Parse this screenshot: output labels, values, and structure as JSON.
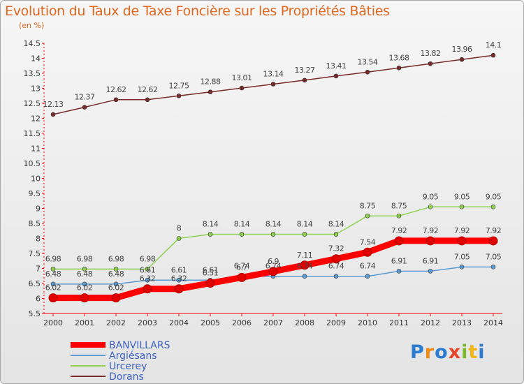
{
  "title": "Evolution du Taux de Taxe Foncière sur les Propriétés Bâties",
  "unit": "(en %)",
  "logo": "Proxiti",
  "chart_data": {
    "type": "line",
    "x": [
      "2000",
      "2001",
      "2002",
      "2003",
      "2004",
      "2005",
      "2006",
      "2007",
      "2008",
      "2009",
      "2010",
      "2011",
      "2012",
      "2013",
      "2014"
    ],
    "ylim": [
      5.5,
      14.5
    ],
    "yticks": [
      "5.5",
      "6",
      "6.5",
      "7",
      "7.5",
      "8",
      "8.5",
      "9",
      "9.5",
      "10",
      "10.5",
      "11",
      "11.5",
      "12",
      "12.5",
      "13",
      "13.5",
      "14",
      "14.5"
    ],
    "grid": false,
    "legend": "bottom-left",
    "series": [
      {
        "name": "BANVILLARS",
        "color": "#ff0000",
        "values": [
          6.02,
          6.02,
          6.02,
          6.32,
          6.32,
          6.51,
          6.7,
          6.9,
          7.11,
          7.32,
          7.54,
          7.92,
          7.92,
          7.92,
          7.92
        ],
        "labels": [
          "6.02",
          "6.02",
          "6.02",
          "6.32",
          "6.32",
          "6.51",
          "6.7",
          "6.9",
          "7.11",
          "7.32",
          "7.54",
          "7.92",
          "7.92",
          "7.92",
          "7.92"
        ]
      },
      {
        "name": "Argiésans",
        "color": "#5b9bd5",
        "values": [
          6.48,
          6.48,
          6.48,
          6.61,
          6.61,
          6.61,
          6.74,
          6.74,
          6.74,
          6.74,
          6.74,
          6.91,
          6.91,
          7.05,
          7.05
        ],
        "labels": [
          "6.48",
          "6.48",
          "6.48",
          "6.61",
          "6.61",
          "6.61",
          "6.74",
          "6.74",
          "6.74",
          "6.74",
          "6.74",
          "6.91",
          "6.91",
          "7.05",
          "7.05"
        ]
      },
      {
        "name": "Urcerey",
        "color": "#8fd14f",
        "values": [
          6.98,
          6.98,
          6.98,
          6.98,
          8,
          8.14,
          8.14,
          8.14,
          8.14,
          8.14,
          8.75,
          8.75,
          9.05,
          9.05,
          9.05
        ],
        "labels": [
          "6.98",
          "6.98",
          "6.98",
          "6.98",
          "8",
          "8.14",
          "8.14",
          "8.14",
          "8.14",
          "8.14",
          "8.75",
          "8.75",
          "9.05",
          "9.05",
          "9.05"
        ]
      },
      {
        "name": "Dorans",
        "color": "#7a2a2a",
        "values": [
          12.13,
          12.37,
          12.62,
          12.62,
          12.75,
          12.88,
          13.01,
          13.14,
          13.27,
          13.41,
          13.54,
          13.68,
          13.82,
          13.96,
          14.1
        ],
        "labels": [
          "12.13",
          "12.37",
          "12.62",
          "12.62",
          "12.75",
          "12.88",
          "13.01",
          "13.14",
          "13.27",
          "13.41",
          "13.54",
          "13.68",
          "13.82",
          "13.96",
          "14.1"
        ]
      }
    ]
  }
}
